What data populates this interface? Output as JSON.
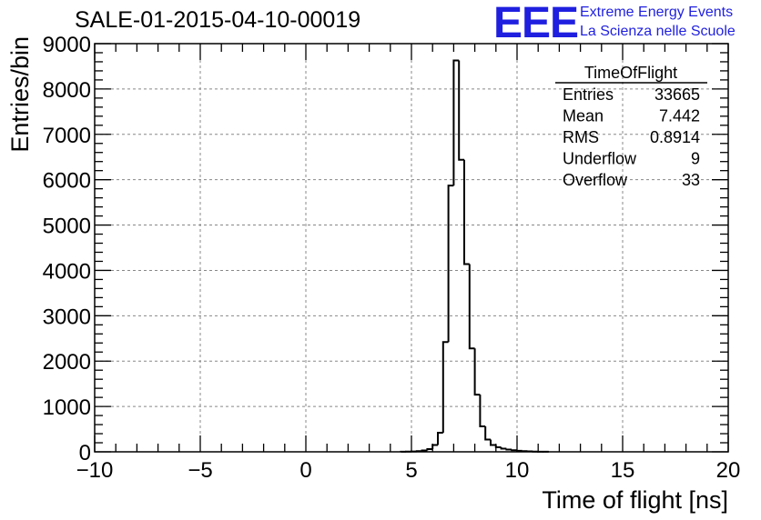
{
  "header": {
    "title": "SALE-01-2015-04-10-00019",
    "logo": "EEE",
    "logo_line1": "Extreme Energy Events",
    "logo_line2": "La Scienza nelle Scuole",
    "logo_color": "#1f1fe0"
  },
  "stats_box": {
    "name": "TimeOfFlight",
    "rows": [
      {
        "label": "Entries",
        "value": "33665"
      },
      {
        "label": "Mean",
        "value": "7.442"
      },
      {
        "label": "RMS",
        "value": "0.8914"
      },
      {
        "label": "Underflow",
        "value": "9"
      },
      {
        "label": "Overflow",
        "value": "33"
      }
    ]
  },
  "chart_data": {
    "type": "bar",
    "title": "SALE-01-2015-04-10-00019",
    "xlabel": "Time of flight [ns]",
    "ylabel": "Entries/bin",
    "xlim": [
      -10,
      20
    ],
    "ylim": [
      0,
      9000
    ],
    "x_ticks": [
      -10,
      -5,
      0,
      5,
      10,
      15,
      20
    ],
    "x_tick_labels": [
      "−10",
      "−5",
      "0",
      "5",
      "10",
      "15",
      "20"
    ],
    "y_ticks": [
      0,
      1000,
      2000,
      3000,
      4000,
      5000,
      6000,
      7000,
      8000,
      9000
    ],
    "y_tick_labels": [
      "0",
      "1000",
      "2000",
      "3000",
      "4000",
      "5000",
      "6000",
      "7000",
      "8000",
      "9000"
    ],
    "grid": true,
    "bin_width": 0.25,
    "bins_start": 4.5,
    "bin_values": [
      3,
      5,
      8,
      15,
      30,
      60,
      150,
      420,
      2420,
      5870,
      8630,
      6440,
      4140,
      2280,
      1260,
      560,
      270,
      150,
      100,
      70,
      50,
      35,
      22,
      15,
      10,
      5,
      3,
      2
    ],
    "line_color": "#000000"
  }
}
